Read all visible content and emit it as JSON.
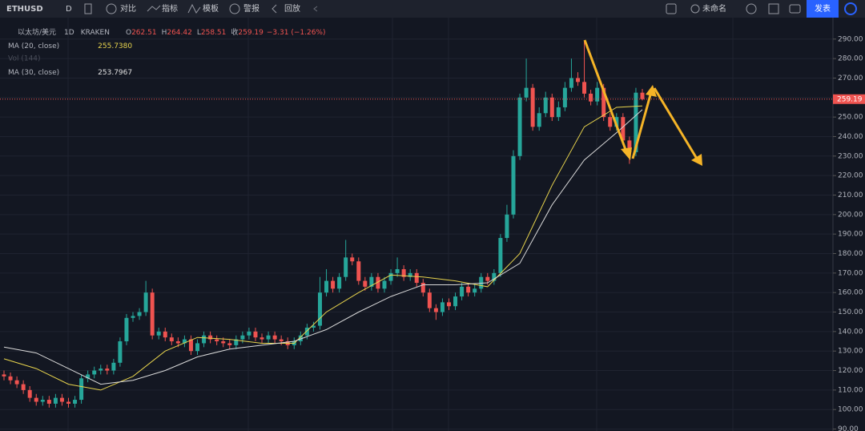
{
  "toolbar": {
    "symbol": "ETHUSD",
    "interval": "D",
    "compare": "对比",
    "indicators": "指标",
    "templates": "模板",
    "alert": "警报",
    "replay": "回放",
    "layout_name": "未命名",
    "publish": "发表"
  },
  "legend": {
    "name": "以太坊/美元",
    "interval": "1D",
    "exchange": "KRAKEN",
    "o_label": "O",
    "o": "262.51",
    "h_label": "H",
    "h": "264.42",
    "l_label": "L",
    "l": "258.51",
    "c_label": "收",
    "c": "259.19",
    "change": "−3.31 (−1.26%)",
    "ma20_value": "255.7380",
    "vol": "Vol (144)",
    "ma30_value": "253.7967"
  },
  "chart_data": {
    "type": "candlestick",
    "up_color": "#26a69a",
    "down_color": "#ef5350",
    "grid": true,
    "open": [
      118,
      117,
      115,
      113,
      110,
      106,
      104,
      105,
      103,
      106,
      104,
      103,
      105,
      116,
      118,
      120,
      121,
      120,
      124,
      135,
      147,
      148,
      150,
      160,
      138,
      140,
      137,
      135,
      134,
      136,
      130,
      134,
      138,
      136,
      135,
      134,
      133,
      136,
      138,
      140,
      137,
      136,
      138,
      136,
      135,
      133,
      135,
      138,
      142,
      143,
      160,
      166,
      162,
      168,
      178,
      176,
      166,
      163,
      168,
      162,
      166,
      170,
      172,
      168,
      170,
      165,
      160,
      152,
      150,
      155,
      153,
      158,
      163,
      160,
      162,
      168,
      166,
      170,
      188,
      200,
      230,
      260,
      265,
      245,
      252,
      260,
      250,
      255,
      265,
      270,
      268,
      262,
      258,
      265,
      250,
      245,
      250,
      238,
      232,
      262.51
    ],
    "high": [
      120,
      119,
      117,
      115,
      112,
      108,
      107,
      107,
      108,
      108,
      106,
      107,
      118,
      120,
      122,
      123,
      123,
      126,
      137,
      149,
      150,
      152,
      166,
      162,
      142,
      142,
      139,
      137,
      138,
      138,
      136,
      140,
      140,
      138,
      137,
      136,
      138,
      140,
      142,
      142,
      139,
      140,
      140,
      138,
      137,
      137,
      140,
      144,
      145,
      168,
      172,
      168,
      170,
      187,
      180,
      178,
      168,
      170,
      170,
      168,
      172,
      178,
      174,
      172,
      172,
      167,
      162,
      154,
      157,
      157,
      160,
      165,
      165,
      164,
      170,
      170,
      172,
      190,
      205,
      233,
      262,
      280,
      267,
      255,
      263,
      262,
      258,
      268,
      280,
      273,
      289,
      264,
      268,
      267,
      252,
      252,
      252,
      240,
      265,
      264.42
    ],
    "low": [
      115,
      113,
      111,
      108,
      104,
      102,
      102,
      101,
      101,
      102,
      101,
      101,
      103,
      114,
      116,
      118,
      118,
      118,
      122,
      133,
      145,
      146,
      148,
      136,
      136,
      135,
      133,
      132,
      132,
      128,
      128,
      132,
      134,
      133,
      132,
      131,
      131,
      134,
      136,
      135,
      134,
      134,
      134,
      133,
      131,
      131,
      133,
      136,
      140,
      141,
      158,
      160,
      160,
      166,
      174,
      164,
      161,
      161,
      160,
      160,
      164,
      168,
      166,
      166,
      163,
      158,
      150,
      146,
      148,
      151,
      151,
      156,
      158,
      158,
      160,
      164,
      164,
      168,
      186,
      198,
      228,
      258,
      243,
      243,
      250,
      248,
      248,
      253,
      263,
      266,
      260,
      256,
      256,
      248,
      243,
      243,
      236,
      226,
      230,
      258.51
    ],
    "close": [
      117,
      115,
      113,
      110,
      106,
      104,
      105,
      103,
      106,
      104,
      103,
      105,
      116,
      118,
      120,
      121,
      120,
      124,
      135,
      147,
      148,
      150,
      160,
      138,
      140,
      137,
      135,
      134,
      136,
      130,
      134,
      138,
      136,
      135,
      134,
      133,
      136,
      138,
      140,
      137,
      136,
      138,
      136,
      135,
      133,
      135,
      138,
      142,
      143,
      160,
      166,
      162,
      168,
      178,
      176,
      166,
      163,
      168,
      162,
      166,
      170,
      172,
      168,
      170,
      165,
      160,
      152,
      150,
      155,
      153,
      158,
      163,
      160,
      162,
      168,
      166,
      170,
      188,
      200,
      230,
      260,
      265,
      245,
      252,
      260,
      250,
      255,
      265,
      270,
      268,
      262,
      258,
      265,
      250,
      245,
      250,
      238,
      232,
      262.51,
      259.19
    ],
    "series": [
      {
        "name": "MA (20, close)",
        "color": "#e8d44d",
        "x": [
          0,
          5,
          10,
          15,
          20,
          25,
          30,
          35,
          40,
          45,
          50,
          55,
          60,
          65,
          70,
          75,
          80,
          85,
          90,
          95,
          99
        ],
        "values": [
          126,
          121,
          113,
          110,
          117,
          130,
          137,
          136,
          134,
          134,
          150,
          160,
          169,
          168,
          166,
          163,
          180,
          215,
          245,
          255,
          255.738
        ]
      },
      {
        "name": "MA (30, close)",
        "color": "#d9d9d9",
        "x": [
          0,
          5,
          10,
          15,
          20,
          25,
          30,
          35,
          40,
          45,
          50,
          55,
          60,
          65,
          70,
          75,
          80,
          85,
          90,
          95,
          99
        ],
        "values": [
          132,
          129,
          121,
          113,
          115,
          120,
          127,
          131,
          133,
          135,
          141,
          150,
          158,
          164,
          164,
          165,
          175,
          205,
          228,
          242,
          253.7967
        ]
      }
    ],
    "xlim": [
      -0.6,
      99.6
    ],
    "ylim": [
      89,
      301
    ],
    "yticks": [
      {
        "value": 90,
        "label": "90.00"
      },
      {
        "value": 100,
        "label": "100.00"
      },
      {
        "value": 110,
        "label": "110.00"
      },
      {
        "value": 120,
        "label": "120.00"
      },
      {
        "value": 130,
        "label": "130.00"
      },
      {
        "value": 140,
        "label": "140.00"
      },
      {
        "value": 150,
        "label": "150.00"
      },
      {
        "value": 160,
        "label": "160.00"
      },
      {
        "value": 170,
        "label": "170.00"
      },
      {
        "value": 180,
        "label": "180.00"
      },
      {
        "value": 190,
        "label": "190.00"
      },
      {
        "value": 200,
        "label": "200.00"
      },
      {
        "value": 210,
        "label": "210.00"
      },
      {
        "value": 220,
        "label": "220.00"
      },
      {
        "value": 230,
        "label": "230.00"
      },
      {
        "value": 240,
        "label": "240.00"
      },
      {
        "value": 250,
        "label": "250.00"
      },
      {
        "value": 260,
        "label": "260.00"
      },
      {
        "value": 270,
        "label": "270.00"
      },
      {
        "value": 280,
        "label": "280.00"
      },
      {
        "value": 290,
        "label": "290.00"
      }
    ]
  }
}
